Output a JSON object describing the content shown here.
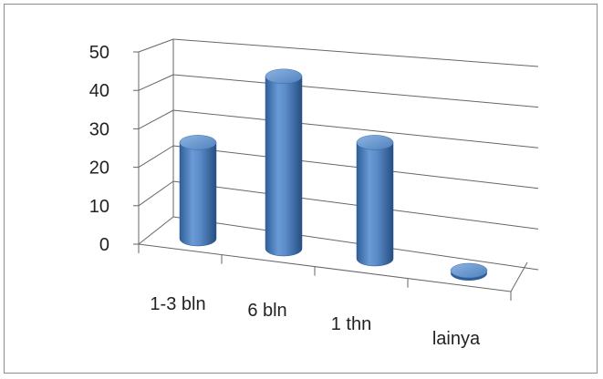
{
  "chart_data": {
    "type": "bar",
    "style": "3d-cylinder",
    "categories": [
      "1-3 bln",
      "6 bln",
      "1 thn",
      "lainya"
    ],
    "values": [
      24,
      43,
      29,
      0
    ],
    "ylim": [
      0,
      50
    ],
    "yticks": [
      0,
      10,
      20,
      30,
      40,
      50
    ],
    "grid": true,
    "legend": "none",
    "colors": {
      "bar": "#4f81bd",
      "bar_dark": "#2f5f99",
      "bar_light": "#8eb4e3",
      "grid": "#666666"
    }
  }
}
